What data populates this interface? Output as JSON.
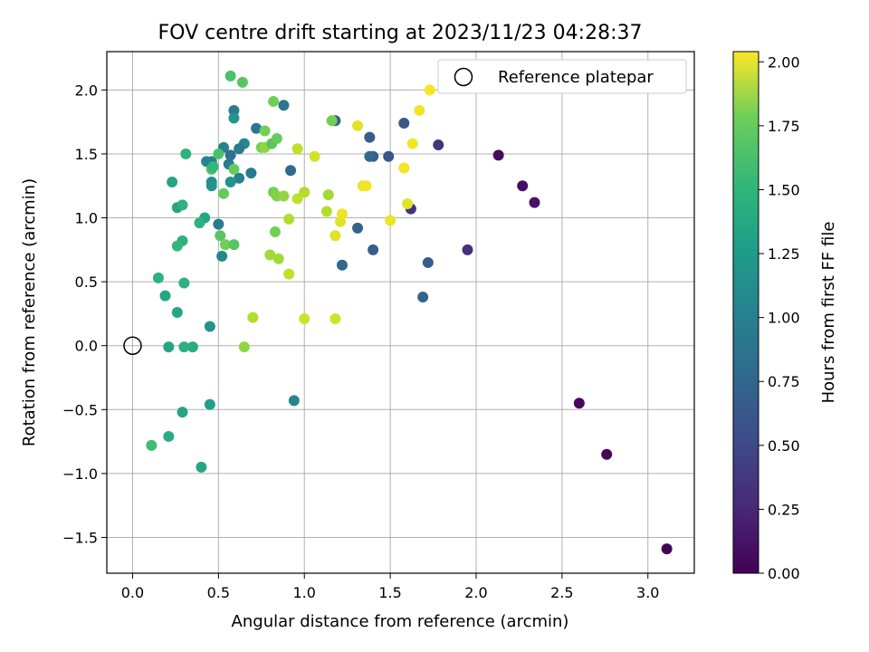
{
  "chart_data": {
    "type": "scatter",
    "title": "FOV centre drift starting at 2023/11/23 04:28:37",
    "xlabel": "Angular distance from reference (arcmin)",
    "ylabel": "Rotation from reference (arcmin)",
    "colorbar_label": "Hours from first FF file",
    "xlim": [
      -0.15,
      3.27
    ],
    "ylim": [
      -1.78,
      2.3
    ],
    "xticks": [
      0.0,
      0.5,
      1.0,
      1.5,
      2.0,
      2.5,
      3.0
    ],
    "xtick_labels": [
      "0.0",
      "0.5",
      "1.0",
      "1.5",
      "2.0",
      "2.5",
      "3.0"
    ],
    "yticks": [
      -1.5,
      -1.0,
      -0.5,
      0.0,
      0.5,
      1.0,
      1.5,
      2.0
    ],
    "ytick_labels": [
      "−1.5",
      "−1.0",
      "−0.5",
      "0.0",
      "0.5",
      "1.0",
      "1.5",
      "2.0"
    ],
    "colorbar_range": [
      0.0,
      2.04
    ],
    "colorbar_ticks": [
      0.0,
      0.25,
      0.5,
      0.75,
      1.0,
      1.25,
      1.5,
      1.75,
      2.0
    ],
    "colorbar_tick_labels": [
      "0.00",
      "0.25",
      "0.50",
      "0.75",
      "1.00",
      "1.25",
      "1.50",
      "1.75",
      "2.00"
    ],
    "colormap": "viridis",
    "grid": true,
    "legend": {
      "position": "top-right",
      "entries": [
        "Reference platepar"
      ]
    },
    "reference_point": {
      "x": 0.0,
      "y": 0.0,
      "marker": "hollow-circle"
    },
    "points": [
      {
        "x": 3.11,
        "y": -1.59,
        "h": 0.02
      },
      {
        "x": 2.76,
        "y": -0.85,
        "h": 0.03
      },
      {
        "x": 2.6,
        "y": -0.45,
        "h": 0.04
      },
      {
        "x": 2.34,
        "y": 1.12,
        "h": 0.1
      },
      {
        "x": 2.27,
        "y": 1.25,
        "h": 0.08
      },
      {
        "x": 2.13,
        "y": 1.49,
        "h": 0.06
      },
      {
        "x": 1.95,
        "y": 0.75,
        "h": 0.28
      },
      {
        "x": 1.78,
        "y": 1.57,
        "h": 0.3
      },
      {
        "x": 1.62,
        "y": 1.07,
        "h": 0.3
      },
      {
        "x": 1.72,
        "y": 0.65,
        "h": 0.6
      },
      {
        "x": 1.69,
        "y": 0.38,
        "h": 0.65
      },
      {
        "x": 1.58,
        "y": 1.74,
        "h": 0.55
      },
      {
        "x": 1.49,
        "y": 1.48,
        "h": 0.55
      },
      {
        "x": 1.4,
        "y": 1.48,
        "h": 0.6
      },
      {
        "x": 1.38,
        "y": 1.48,
        "h": 0.7
      },
      {
        "x": 1.38,
        "y": 1.63,
        "h": 0.6
      },
      {
        "x": 1.4,
        "y": 0.75,
        "h": 0.6
      },
      {
        "x": 1.31,
        "y": 0.92,
        "h": 0.65
      },
      {
        "x": 1.22,
        "y": 0.63,
        "h": 0.68
      },
      {
        "x": 1.18,
        "y": 1.76,
        "h": 0.6
      },
      {
        "x": 1.16,
        "y": 1.76,
        "h": 1.6
      },
      {
        "x": 0.94,
        "y": -0.43,
        "h": 0.95
      },
      {
        "x": 0.92,
        "y": 1.37,
        "h": 0.68
      },
      {
        "x": 0.88,
        "y": 1.88,
        "h": 0.8
      },
      {
        "x": 0.72,
        "y": 1.7,
        "h": 0.8
      },
      {
        "x": 0.69,
        "y": 1.35,
        "h": 0.85
      },
      {
        "x": 0.65,
        "y": 1.58,
        "h": 0.95
      },
      {
        "x": 0.62,
        "y": 1.54,
        "h": 0.85
      },
      {
        "x": 0.62,
        "y": 1.31,
        "h": 0.9
      },
      {
        "x": 0.59,
        "y": 1.84,
        "h": 0.85
      },
      {
        "x": 0.59,
        "y": 1.78,
        "h": 1.05
      },
      {
        "x": 0.57,
        "y": 1.49,
        "h": 0.75
      },
      {
        "x": 0.56,
        "y": 1.42,
        "h": 0.85
      },
      {
        "x": 0.53,
        "y": 1.55,
        "h": 0.9
      },
      {
        "x": 0.5,
        "y": 0.95,
        "h": 0.85
      },
      {
        "x": 0.52,
        "y": 0.7,
        "h": 0.95
      },
      {
        "x": 0.57,
        "y": 1.28,
        "h": 1.05
      },
      {
        "x": 0.46,
        "y": 1.44,
        "h": 0.9
      },
      {
        "x": 0.43,
        "y": 1.44,
        "h": 0.95
      },
      {
        "x": 0.46,
        "y": 1.28,
        "h": 1.0
      },
      {
        "x": 0.46,
        "y": 1.25,
        "h": 1.05
      },
      {
        "x": 0.45,
        "y": 0.15,
        "h": 1.05
      },
      {
        "x": 0.45,
        "y": -0.46,
        "h": 1.15
      },
      {
        "x": 0.4,
        "y": -0.95,
        "h": 1.2
      },
      {
        "x": 0.42,
        "y": 1.0,
        "h": 1.2
      },
      {
        "x": 0.39,
        "y": 0.96,
        "h": 1.3
      },
      {
        "x": 0.35,
        "y": -0.01,
        "h": 1.25
      },
      {
        "x": 0.3,
        "y": -0.01,
        "h": 1.3
      },
      {
        "x": 0.29,
        "y": -0.52,
        "h": 1.2
      },
      {
        "x": 0.3,
        "y": 0.49,
        "h": 1.3
      },
      {
        "x": 0.29,
        "y": 0.82,
        "h": 1.3
      },
      {
        "x": 0.26,
        "y": 0.78,
        "h": 1.35
      },
      {
        "x": 0.26,
        "y": 1.08,
        "h": 1.2
      },
      {
        "x": 0.29,
        "y": 1.1,
        "h": 1.3
      },
      {
        "x": 0.31,
        "y": 1.5,
        "h": 1.3
      },
      {
        "x": 0.23,
        "y": 1.28,
        "h": 1.2
      },
      {
        "x": 0.26,
        "y": 0.26,
        "h": 1.2
      },
      {
        "x": 0.19,
        "y": 0.39,
        "h": 1.2
      },
      {
        "x": 0.15,
        "y": 0.53,
        "h": 1.3
      },
      {
        "x": 0.21,
        "y": -0.01,
        "h": 1.2
      },
      {
        "x": 0.21,
        "y": -0.71,
        "h": 1.25
      },
      {
        "x": 0.11,
        "y": -0.78,
        "h": 1.4
      },
      {
        "x": 0.46,
        "y": 1.38,
        "h": 1.45
      },
      {
        "x": 0.47,
        "y": 1.4,
        "h": 1.35
      },
      {
        "x": 0.5,
        "y": 1.5,
        "h": 1.45
      },
      {
        "x": 0.51,
        "y": 0.86,
        "h": 1.5
      },
      {
        "x": 0.53,
        "y": 1.19,
        "h": 1.55
      },
      {
        "x": 0.54,
        "y": 0.79,
        "h": 1.6
      },
      {
        "x": 0.59,
        "y": 0.79,
        "h": 1.5
      },
      {
        "x": 0.59,
        "y": 1.38,
        "h": 1.55
      },
      {
        "x": 0.57,
        "y": 2.11,
        "h": 1.45
      },
      {
        "x": 0.64,
        "y": 2.06,
        "h": 1.5
      },
      {
        "x": 0.82,
        "y": 1.91,
        "h": 1.6
      },
      {
        "x": 0.77,
        "y": 1.68,
        "h": 1.6
      },
      {
        "x": 0.75,
        "y": 1.55,
        "h": 1.6
      },
      {
        "x": 0.77,
        "y": 1.55,
        "h": 1.7
      },
      {
        "x": 0.81,
        "y": 1.58,
        "h": 1.5
      },
      {
        "x": 0.84,
        "y": 1.62,
        "h": 1.55
      },
      {
        "x": 0.82,
        "y": 1.2,
        "h": 1.6
      },
      {
        "x": 0.84,
        "y": 1.17,
        "h": 1.65
      },
      {
        "x": 0.88,
        "y": 1.17,
        "h": 1.7
      },
      {
        "x": 0.83,
        "y": 0.89,
        "h": 1.6
      },
      {
        "x": 0.8,
        "y": 0.71,
        "h": 1.75
      },
      {
        "x": 0.85,
        "y": 0.68,
        "h": 1.75
      },
      {
        "x": 0.91,
        "y": 0.99,
        "h": 1.8
      },
      {
        "x": 0.91,
        "y": 0.56,
        "h": 1.85
      },
      {
        "x": 0.7,
        "y": 0.22,
        "h": 1.8
      },
      {
        "x": 0.65,
        "y": -0.01,
        "h": 1.7
      },
      {
        "x": 0.96,
        "y": 1.15,
        "h": 1.85
      },
      {
        "x": 0.96,
        "y": 1.54,
        "h": 1.85
      },
      {
        "x": 1.0,
        "y": 1.2,
        "h": 1.8
      },
      {
        "x": 1.06,
        "y": 1.48,
        "h": 1.9
      },
      {
        "x": 1.0,
        "y": 0.21,
        "h": 1.9
      },
      {
        "x": 1.13,
        "y": 1.05,
        "h": 1.8
      },
      {
        "x": 1.14,
        "y": 1.18,
        "h": 1.75
      },
      {
        "x": 1.18,
        "y": 0.21,
        "h": 1.9
      },
      {
        "x": 1.18,
        "y": 0.86,
        "h": 1.95
      },
      {
        "x": 1.21,
        "y": 0.97,
        "h": 1.95
      },
      {
        "x": 1.22,
        "y": 1.03,
        "h": 1.98
      },
      {
        "x": 1.31,
        "y": 1.72,
        "h": 1.95
      },
      {
        "x": 1.34,
        "y": 1.25,
        "h": 1.98
      },
      {
        "x": 1.36,
        "y": 1.25,
        "h": 2.0
      },
      {
        "x": 1.5,
        "y": 0.98,
        "h": 1.98
      },
      {
        "x": 1.58,
        "y": 1.39,
        "h": 2.0
      },
      {
        "x": 1.6,
        "y": 1.11,
        "h": 1.95
      },
      {
        "x": 1.63,
        "y": 1.58,
        "h": 2.0
      },
      {
        "x": 1.67,
        "y": 1.84,
        "h": 2.0
      },
      {
        "x": 1.73,
        "y": 2.0,
        "h": 2.02
      }
    ]
  }
}
